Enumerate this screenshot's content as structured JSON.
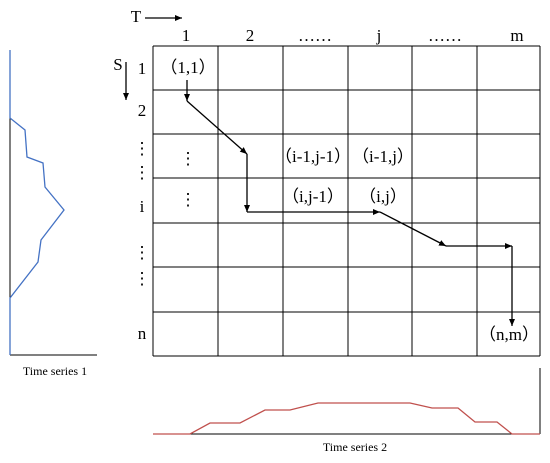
{
  "time_axis_label": "T",
  "sequence_axis_label": "S",
  "column_labels": [
    "1",
    "2",
    "……",
    "j",
    "……",
    "m"
  ],
  "row_labels": [
    "1",
    "2",
    "⋮",
    "⋮",
    "i",
    "⋮",
    "⋮",
    "n"
  ],
  "cells": [
    "（1,1）",
    "⋮",
    "⋮",
    "（i-1,j-1）",
    "（i-1,j）",
    "（i,j-1）",
    "（i,j）",
    "（n,m）"
  ],
  "series_1_label": "Time series 1",
  "series_2_label": "Time series 2"
}
